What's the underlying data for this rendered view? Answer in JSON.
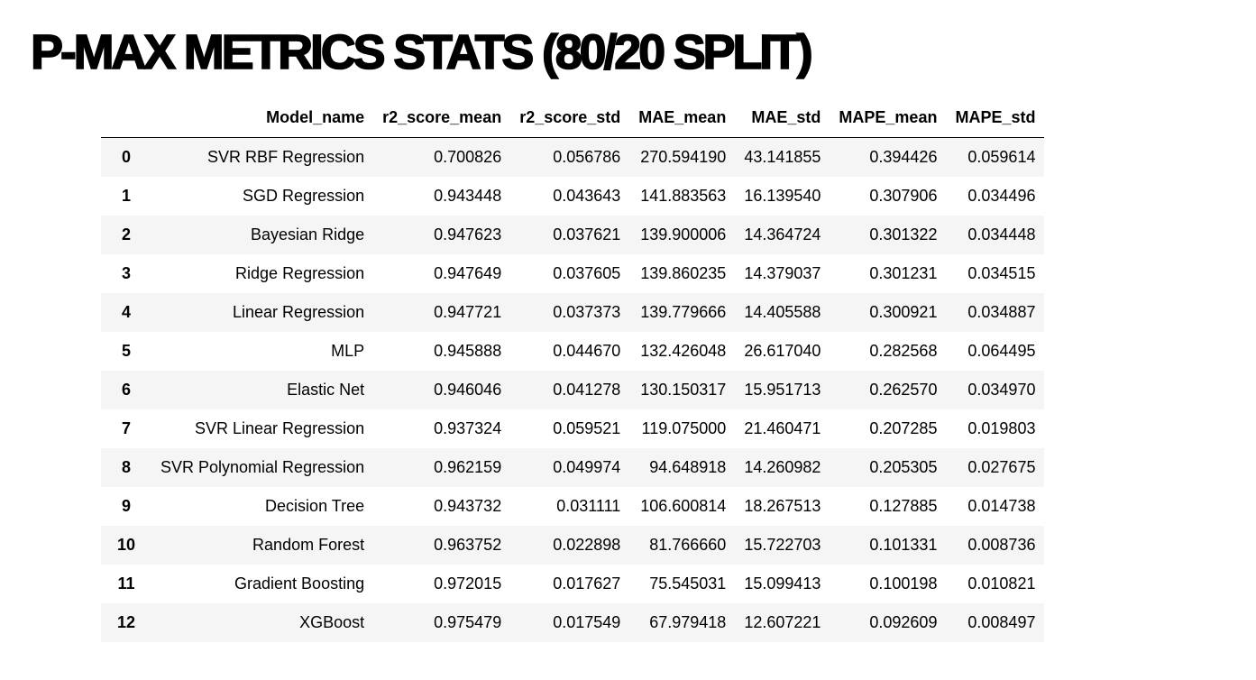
{
  "title": "P-MAX METRICS STATS (80/20 SPLIT)",
  "table": {
    "columns": [
      "",
      "Model_name",
      "r2_score_mean",
      "r2_score_std",
      "MAE_mean",
      "MAE_std",
      "MAPE_mean",
      "MAPE_std"
    ],
    "rows": [
      [
        "0",
        "SVR RBF Regression",
        "0.700826",
        "0.056786",
        "270.594190",
        "43.141855",
        "0.394426",
        "0.059614"
      ],
      [
        "1",
        "SGD Regression",
        "0.943448",
        "0.043643",
        "141.883563",
        "16.139540",
        "0.307906",
        "0.034496"
      ],
      [
        "2",
        "Bayesian Ridge",
        "0.947623",
        "0.037621",
        "139.900006",
        "14.364724",
        "0.301322",
        "0.034448"
      ],
      [
        "3",
        "Ridge Regression",
        "0.947649",
        "0.037605",
        "139.860235",
        "14.379037",
        "0.301231",
        "0.034515"
      ],
      [
        "4",
        "Linear Regression",
        "0.947721",
        "0.037373",
        "139.779666",
        "14.405588",
        "0.300921",
        "0.034887"
      ],
      [
        "5",
        "MLP",
        "0.945888",
        "0.044670",
        "132.426048",
        "26.617040",
        "0.282568",
        "0.064495"
      ],
      [
        "6",
        "Elastic Net",
        "0.946046",
        "0.041278",
        "130.150317",
        "15.951713",
        "0.262570",
        "0.034970"
      ],
      [
        "7",
        "SVR Linear Regression",
        "0.937324",
        "0.059521",
        "119.075000",
        "21.460471",
        "0.207285",
        "0.019803"
      ],
      [
        "8",
        "SVR Polynomial Regression",
        "0.962159",
        "0.049974",
        "94.648918",
        "14.260982",
        "0.205305",
        "0.027675"
      ],
      [
        "9",
        "Decision Tree",
        "0.943732",
        "0.031111",
        "106.600814",
        "18.267513",
        "0.127885",
        "0.014738"
      ],
      [
        "10",
        "Random Forest",
        "0.963752",
        "0.022898",
        "81.766660",
        "15.722703",
        "0.101331",
        "0.008736"
      ],
      [
        "11",
        "Gradient Boosting",
        "0.972015",
        "0.017627",
        "75.545031",
        "15.099413",
        "0.100198",
        "0.010821"
      ],
      [
        "12",
        "XGBoost",
        "0.975479",
        "0.017549",
        "67.979418",
        "12.607221",
        "0.092609",
        "0.008497"
      ]
    ]
  }
}
